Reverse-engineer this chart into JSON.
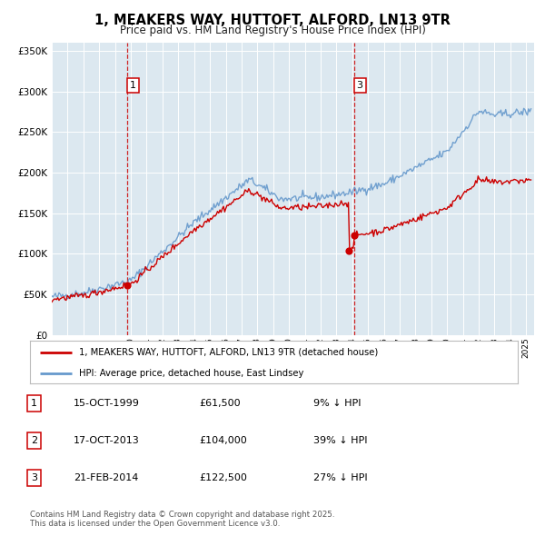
{
  "title": "1, MEAKERS WAY, HUTTOFT, ALFORD, LN13 9TR",
  "subtitle": "Price paid vs. HM Land Registry's House Price Index (HPI)",
  "legend_line1": "1, MEAKERS WAY, HUTTOFT, ALFORD, LN13 9TR (detached house)",
  "legend_line2": "HPI: Average price, detached house, East Lindsey",
  "red_color": "#cc0000",
  "blue_color": "#6699cc",
  "background_color": "#dce8f0",
  "table_rows": [
    {
      "num": "1",
      "date": "15-OCT-1999",
      "price": "£61,500",
      "pct": "9% ↓ HPI"
    },
    {
      "num": "2",
      "date": "17-OCT-2013",
      "price": "£104,000",
      "pct": "39% ↓ HPI"
    },
    {
      "num": "3",
      "date": "21-FEB-2014",
      "price": "£122,500",
      "pct": "27% ↓ HPI"
    }
  ],
  "footer": "Contains HM Land Registry data © Crown copyright and database right 2025.\nThis data is licensed under the Open Government Licence v3.0.",
  "transactions": [
    {
      "date_num": 1999.79,
      "price": 61500,
      "label": "1"
    },
    {
      "date_num": 2013.79,
      "price": 104000,
      "label": "2"
    },
    {
      "date_num": 2014.13,
      "price": 122500,
      "label": "3"
    }
  ],
  "vlines": [
    1999.79,
    2014.13
  ],
  "ylim": [
    0,
    360000
  ],
  "xlim_start": 1995.0,
  "xlim_end": 2025.5
}
